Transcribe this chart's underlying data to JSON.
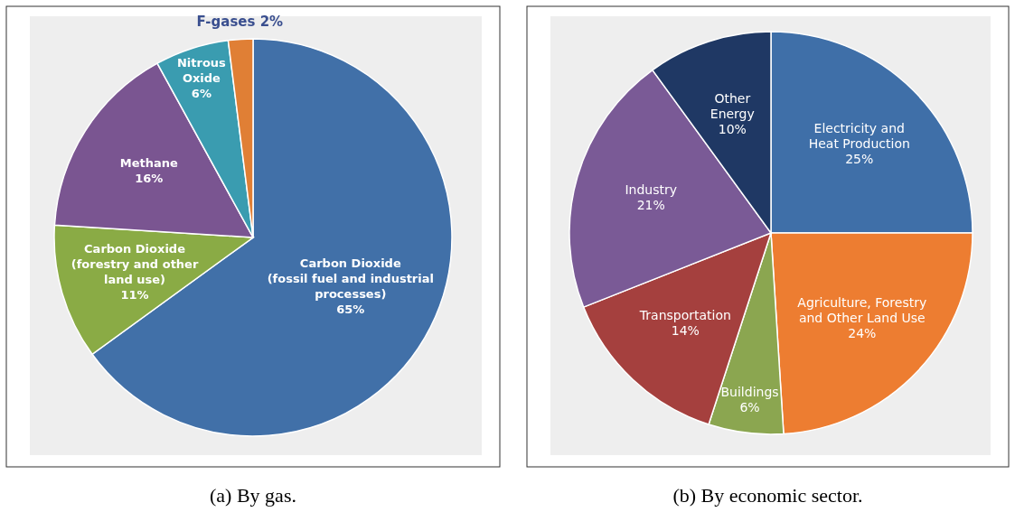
{
  "chart_data": [
    {
      "type": "pie",
      "title": "(a) By gas.",
      "categories": [
        "Carbon Dioxide\n(fossil fuel and industrial\nprocesses)",
        "Carbon Dioxide\n(forestry and other\nland use)",
        "Methane",
        "Nitrous\nOxide",
        "F-gases"
      ],
      "values": [
        65,
        11,
        16,
        6,
        2
      ],
      "colors": [
        "#4170a8",
        "#8aab45",
        "#7a5591",
        "#3a9cb0",
        "#e07f35"
      ],
      "value_labels": [
        "65%",
        "11%",
        "16%",
        "6%",
        "2%"
      ]
    },
    {
      "type": "pie",
      "title": "(b) By economic sector.",
      "categories": [
        "Electricity and\nHeat Production",
        "Agriculture, Forestry\nand Other Land Use",
        "Buildings",
        "Transportation",
        "Industry",
        "Other\nEnergy"
      ],
      "values": [
        25,
        24,
        6,
        14,
        21,
        10
      ],
      "colors": [
        "#3f6fa8",
        "#ed7d31",
        "#8ba650",
        "#a5403e",
        "#7a5a96",
        "#1f3864"
      ],
      "value_labels": [
        "25%",
        "24%",
        "6%",
        "14%",
        "21%",
        "10%"
      ]
    }
  ]
}
